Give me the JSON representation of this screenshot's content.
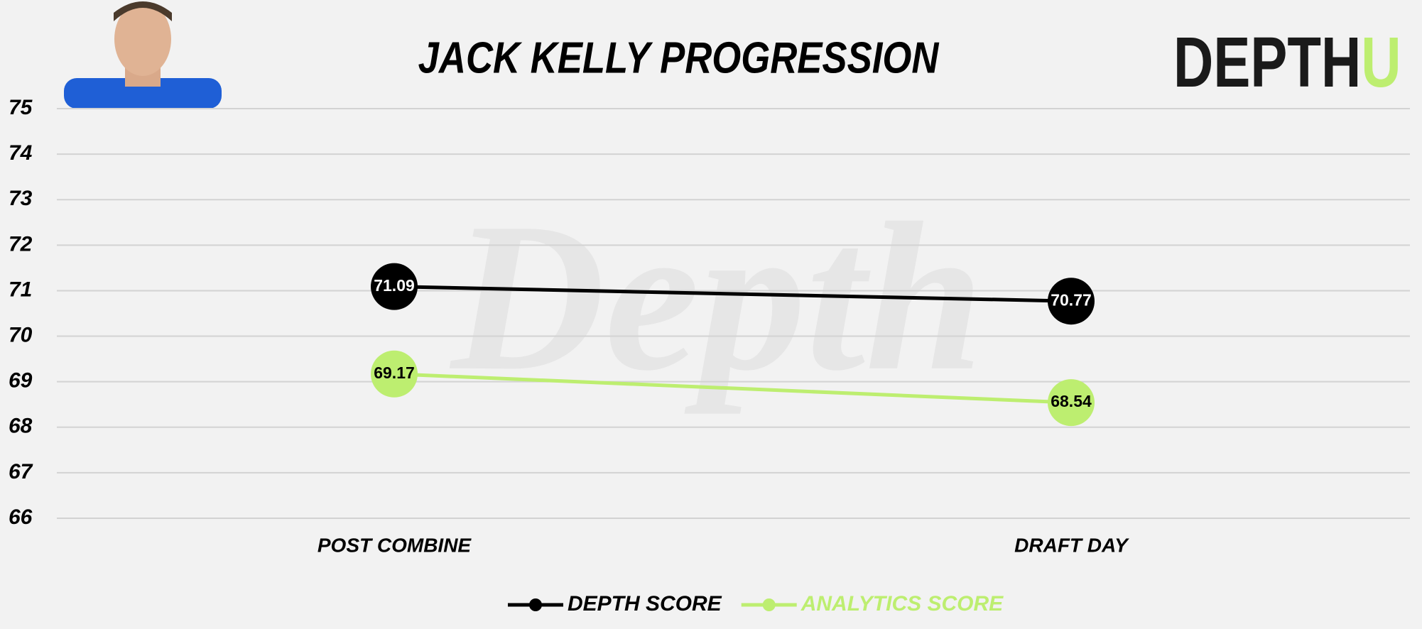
{
  "chart_data": {
    "type": "line",
    "title": "JACK KELLY PROGRESSION",
    "logo": {
      "text": "DEPTH",
      "accent": "U"
    },
    "watermark": "Depth",
    "categories": [
      "POST COMBINE",
      "DRAFT DAY"
    ],
    "series": [
      {
        "name": "DEPTH SCORE",
        "color": "#000000",
        "values": [
          71.09,
          70.77
        ]
      },
      {
        "name": "ANALYTICS SCORE",
        "color": "#bdee70",
        "values": [
          69.17,
          68.54
        ]
      }
    ],
    "ylim": [
      66,
      75
    ],
    "yticks": [
      66,
      67,
      68,
      69,
      70,
      71,
      72,
      73,
      74,
      75
    ],
    "grid": true
  }
}
